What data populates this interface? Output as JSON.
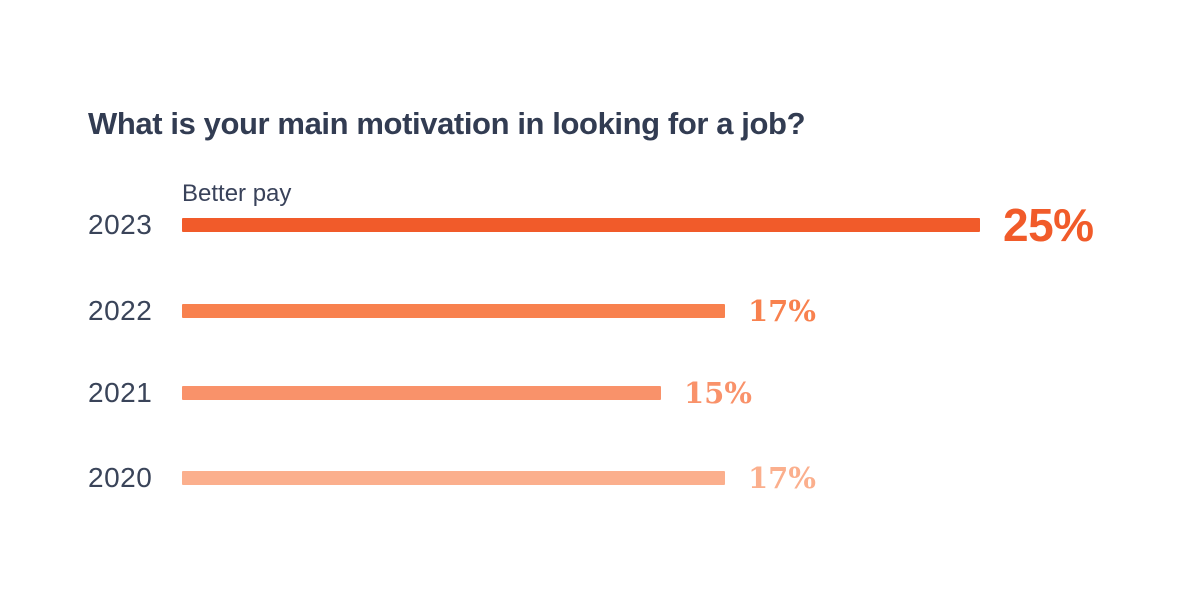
{
  "page": {
    "background_color": "#ffffff"
  },
  "chart": {
    "title": "What is your main motivation in looking for a job?",
    "series_label": "Better pay",
    "title_color": "#323c52",
    "year_label_color": "#3a4459"
  },
  "chart_data": {
    "type": "bar",
    "orientation": "horizontal",
    "title": "What is your main motivation in looking for a job?",
    "series_label": "Better pay",
    "categories": [
      "2023",
      "2022",
      "2021",
      "2020"
    ],
    "values": [
      25,
      17,
      15,
      17
    ],
    "value_labels": [
      "25%",
      "17%",
      "15%",
      "17%"
    ],
    "unit": "%",
    "xlim": [
      0,
      25
    ],
    "grid": false,
    "legend": false,
    "emphasized_index": 0,
    "bar_colors": [
      "#f15b2a",
      "#f8814e",
      "#f9926a",
      "#fbaf8d"
    ],
    "value_label_colors": [
      "#f15b2a",
      "#f8814e",
      "#f9926a",
      "#fbaf8d"
    ]
  }
}
